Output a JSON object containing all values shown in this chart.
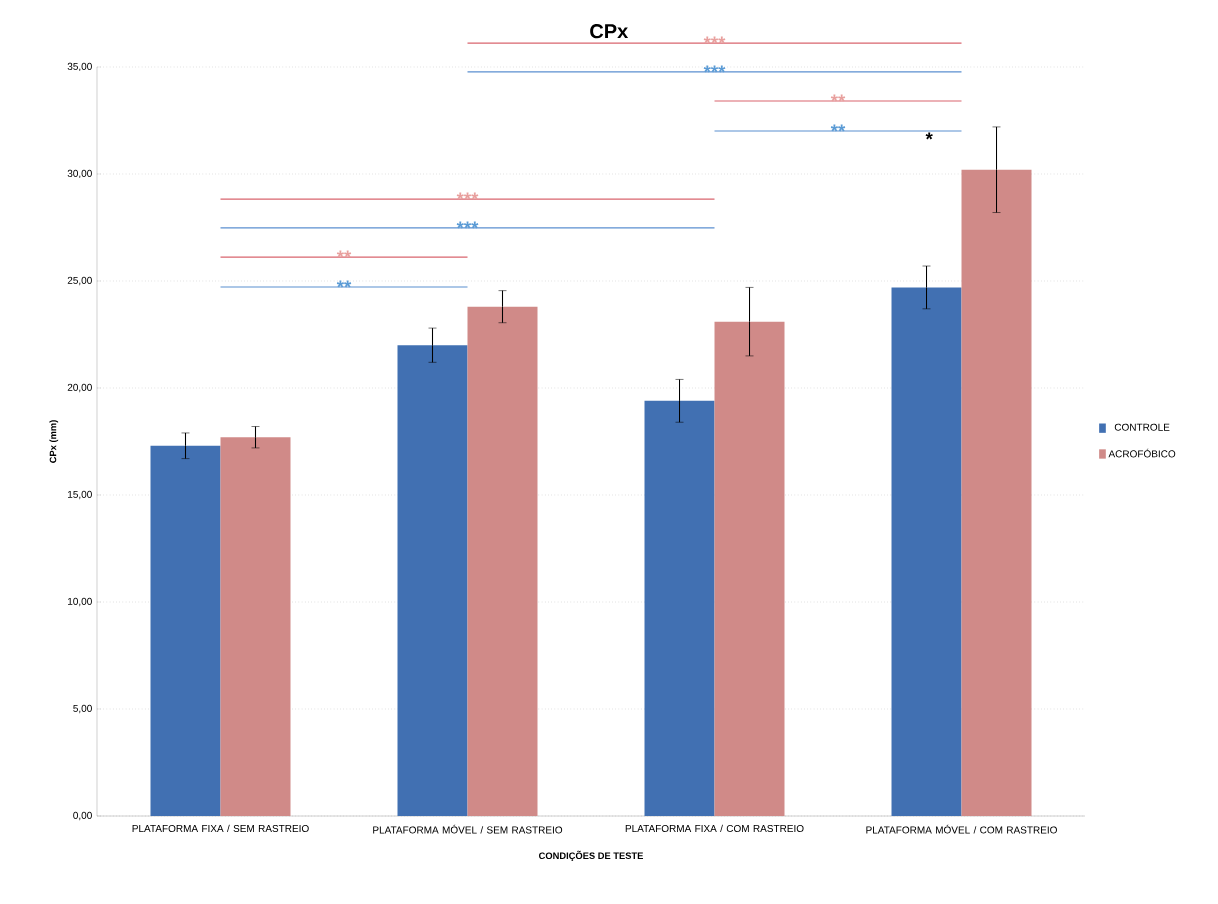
{
  "chart_data": {
    "type": "bar",
    "title": "CPx",
    "xlabel": "CONDIÇÕES DE TESTE",
    "ylabel": "CPx (mm)",
    "categories": [
      "PLATAFORMA FIXA / SEM RASTREIO",
      "PLATAFORMA MÓVEL / SEM RASTREIO",
      "PLATAFORMA FIXA / COM RASTREIO",
      "PLATAFORMA MÓVEL / COM RASTREIO"
    ],
    "series": [
      {
        "name": "CONTROLE",
        "color": "#4170b2",
        "values": [
          17.3,
          22.0,
          19.4,
          24.7
        ],
        "errors": [
          0.6,
          0.8,
          1.0,
          1.0
        ]
      },
      {
        "name": "ACROFÓBICO",
        "color": "#d08a88",
        "values": [
          17.7,
          23.8,
          23.1,
          30.2
        ],
        "errors": [
          0.5,
          0.75,
          1.6,
          2.0
        ]
      }
    ],
    "ylim": [
      0,
      35
    ],
    "yticks": [
      {
        "value": 0,
        "label": "0,00"
      },
      {
        "value": 5,
        "label": "5,00"
      },
      {
        "value": 10,
        "label": "10,00"
      },
      {
        "value": 15,
        "label": "15,00"
      },
      {
        "value": 20,
        "label": "20,00"
      },
      {
        "value": 25,
        "label": "25,00"
      },
      {
        "value": 30,
        "label": "30,00"
      },
      {
        "value": 35,
        "label": "35,00"
      }
    ],
    "grid": "y",
    "legend": "right",
    "annotations": [
      "***",
      "***",
      "**",
      "**",
      "***",
      "***",
      "**",
      "**",
      "*"
    ]
  }
}
